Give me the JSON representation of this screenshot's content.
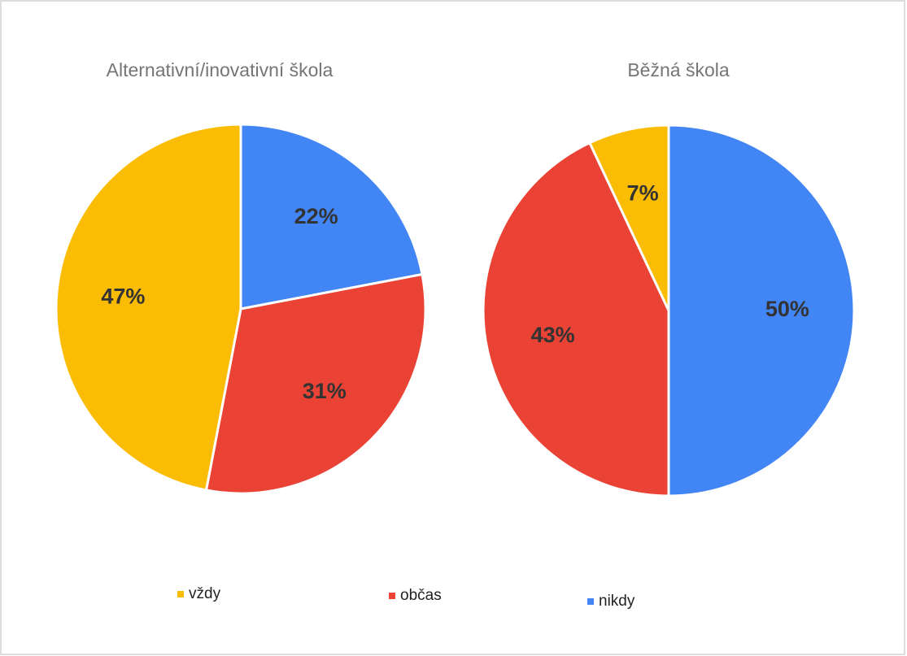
{
  "chart_data": [
    {
      "type": "pie",
      "title": "Alternativní/inovativní  škola",
      "categories": [
        "nikdy",
        "občas",
        "vždy"
      ],
      "values": [
        22,
        31,
        47
      ],
      "value_labels": [
        "22%",
        "31%",
        "47%"
      ],
      "colors": [
        "#4285f4",
        "#ea4335",
        "#fbbc04"
      ]
    },
    {
      "type": "pie",
      "title": "Běžná škola",
      "categories": [
        "nikdy",
        "občas",
        "vždy"
      ],
      "values": [
        50,
        43,
        7
      ],
      "value_labels": [
        "50%",
        "43%",
        "7%"
      ],
      "colors": [
        "#4285f4",
        "#ea4335",
        "#fbbc04"
      ]
    }
  ]
}
